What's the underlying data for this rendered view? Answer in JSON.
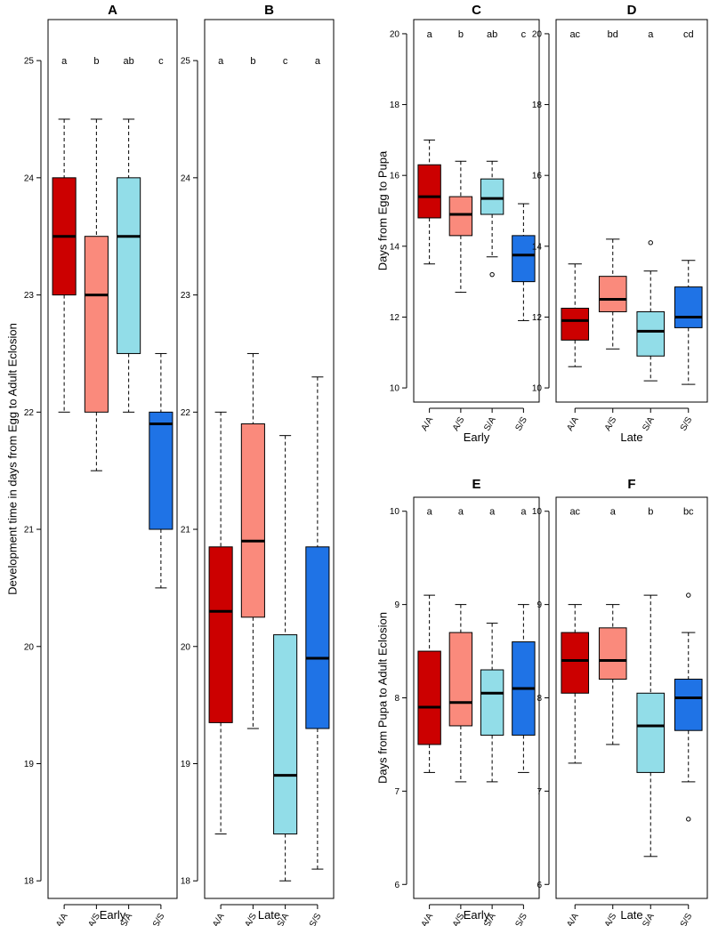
{
  "colors": {
    "A/A": "#cc0000",
    "A/S": "#fa8a7c",
    "S/A": "#92dde8",
    "S/S": "#1f73e6"
  },
  "chart_data": [
    {
      "id": "A",
      "type": "boxplot",
      "title": "A",
      "xlabel": "Early",
      "ylabel": "Development time in days from Egg to Adult Eclosion",
      "ylim": [
        17.85,
        25.35
      ],
      "yticks": [
        18,
        19,
        20,
        21,
        22,
        23,
        24,
        25
      ],
      "categories": [
        "A/A",
        "A/S",
        "S/A",
        "S/S"
      ],
      "letters": [
        "a",
        "b",
        "ab",
        "c"
      ],
      "letters_y": 25,
      "boxes": [
        {
          "low": 22.0,
          "q1": 23.0,
          "median": 23.5,
          "q3": 24.0,
          "high": 24.5,
          "outliers": []
        },
        {
          "low": 21.5,
          "q1": 22.0,
          "median": 23.0,
          "q3": 23.5,
          "high": 24.5,
          "outliers": []
        },
        {
          "low": 22.0,
          "q1": 22.5,
          "median": 23.5,
          "q3": 24.0,
          "high": 24.5,
          "outliers": []
        },
        {
          "low": 20.5,
          "q1": 21.0,
          "median": 21.9,
          "q3": 22.0,
          "high": 22.5,
          "outliers": []
        }
      ]
    },
    {
      "id": "B",
      "type": "boxplot",
      "title": "B",
      "xlabel": "Late",
      "ylabel": "",
      "ylim": [
        17.85,
        25.35
      ],
      "yticks": [
        18,
        19,
        20,
        21,
        22,
        23,
        24,
        25
      ],
      "categories": [
        "A/A",
        "A/S",
        "S/A",
        "S/S"
      ],
      "letters": [
        "a",
        "b",
        "c",
        "a"
      ],
      "letters_y": 25,
      "boxes": [
        {
          "low": 18.4,
          "q1": 19.35,
          "median": 20.3,
          "q3": 20.85,
          "high": 22.0,
          "outliers": []
        },
        {
          "low": 19.3,
          "q1": 20.25,
          "median": 20.9,
          "q3": 21.9,
          "high": 22.5,
          "outliers": []
        },
        {
          "low": 18.0,
          "q1": 18.4,
          "median": 18.9,
          "q3": 20.1,
          "high": 21.8,
          "outliers": []
        },
        {
          "low": 18.1,
          "q1": 19.3,
          "median": 19.9,
          "q3": 20.85,
          "high": 22.3,
          "outliers": []
        }
      ]
    },
    {
      "id": "C",
      "type": "boxplot",
      "title": "C",
      "xlabel": "Early",
      "ylabel": "Days from Egg to Pupa",
      "ylim": [
        9.6,
        20.4
      ],
      "yticks": [
        10,
        12,
        14,
        16,
        18,
        20
      ],
      "categories": [
        "A/A",
        "A/S",
        "S/A",
        "S/S"
      ],
      "letters": [
        "a",
        "b",
        "ab",
        "c"
      ],
      "letters_y": 20,
      "boxes": [
        {
          "low": 13.5,
          "q1": 14.8,
          "median": 15.4,
          "q3": 16.3,
          "high": 17.0,
          "outliers": []
        },
        {
          "low": 12.7,
          "q1": 14.3,
          "median": 14.9,
          "q3": 15.4,
          "high": 16.4,
          "outliers": []
        },
        {
          "low": 13.7,
          "q1": 14.9,
          "median": 15.35,
          "q3": 15.9,
          "high": 16.4,
          "outliers": [
            13.2
          ]
        },
        {
          "low": 11.9,
          "q1": 13.0,
          "median": 13.75,
          "q3": 14.3,
          "high": 15.2,
          "outliers": []
        }
      ]
    },
    {
      "id": "D",
      "type": "boxplot",
      "title": "D",
      "xlabel": "Late",
      "ylabel": "",
      "ylim": [
        9.6,
        20.4
      ],
      "yticks": [
        10,
        12,
        14,
        16,
        18,
        20
      ],
      "categories": [
        "A/A",
        "A/S",
        "S/A",
        "S/S"
      ],
      "letters": [
        "ac",
        "bd",
        "a",
        "cd"
      ],
      "letters_y": 20,
      "boxes": [
        {
          "low": 10.6,
          "q1": 11.35,
          "median": 11.9,
          "q3": 12.25,
          "high": 13.5,
          "outliers": []
        },
        {
          "low": 11.1,
          "q1": 12.15,
          "median": 12.5,
          "q3": 13.15,
          "high": 14.2,
          "outliers": []
        },
        {
          "low": 10.2,
          "q1": 10.9,
          "median": 11.6,
          "q3": 12.15,
          "high": 13.3,
          "outliers": [
            14.1
          ]
        },
        {
          "low": 10.1,
          "q1": 11.7,
          "median": 12.0,
          "q3": 12.85,
          "high": 13.6,
          "outliers": []
        }
      ]
    },
    {
      "id": "E",
      "type": "boxplot",
      "title": "E",
      "xlabel": "Early",
      "ylabel": "Days from Pupa to Adult Eclosion",
      "ylim": [
        5.85,
        10.15
      ],
      "yticks": [
        6,
        7,
        8,
        9,
        10
      ],
      "categories": [
        "A/A",
        "A/S",
        "S/A",
        "S/S"
      ],
      "letters": [
        "a",
        "a",
        "a",
        "a"
      ],
      "letters_y": 10,
      "boxes": [
        {
          "low": 7.2,
          "q1": 7.5,
          "median": 7.9,
          "q3": 8.5,
          "high": 9.1,
          "outliers": []
        },
        {
          "low": 7.1,
          "q1": 7.7,
          "median": 7.95,
          "q3": 8.7,
          "high": 9.0,
          "outliers": []
        },
        {
          "low": 7.1,
          "q1": 7.6,
          "median": 8.05,
          "q3": 8.3,
          "high": 8.8,
          "outliers": []
        },
        {
          "low": 7.2,
          "q1": 7.6,
          "median": 8.1,
          "q3": 8.6,
          "high": 9.0,
          "outliers": []
        }
      ]
    },
    {
      "id": "F",
      "type": "boxplot",
      "title": "F",
      "xlabel": "Late",
      "ylabel": "",
      "ylim": [
        5.85,
        10.15
      ],
      "yticks": [
        6,
        7,
        8,
        9,
        10
      ],
      "categories": [
        "A/A",
        "A/S",
        "S/A",
        "S/S"
      ],
      "letters": [
        "ac",
        "a",
        "b",
        "bc"
      ],
      "letters_y": 10,
      "boxes": [
        {
          "low": 7.3,
          "q1": 8.05,
          "median": 8.4,
          "q3": 8.7,
          "high": 9.0,
          "outliers": []
        },
        {
          "low": 7.5,
          "q1": 8.2,
          "median": 8.4,
          "q3": 8.75,
          "high": 9.0,
          "outliers": []
        },
        {
          "low": 6.3,
          "q1": 7.2,
          "median": 7.7,
          "q3": 8.05,
          "high": 9.1,
          "outliers": []
        },
        {
          "low": 7.1,
          "q1": 7.65,
          "median": 8.0,
          "q3": 8.2,
          "high": 8.7,
          "outliers": [
            9.1,
            6.7
          ]
        }
      ]
    }
  ]
}
